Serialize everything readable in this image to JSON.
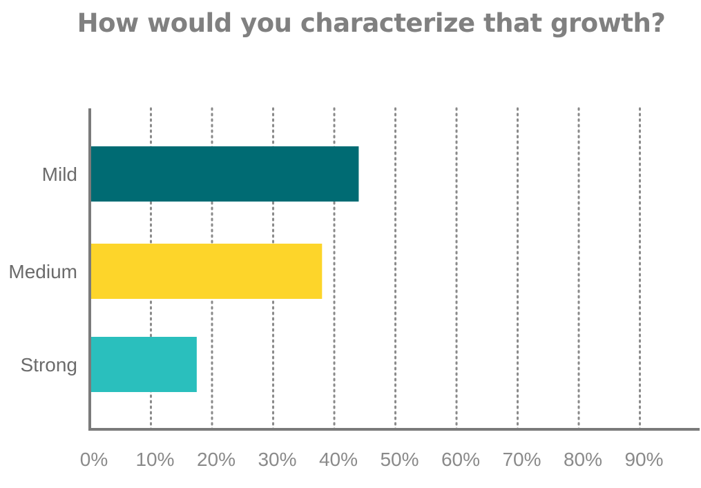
{
  "chart_data": {
    "type": "bar",
    "orientation": "horizontal",
    "title": "How would you characterize that growth?",
    "xlabel": "",
    "ylabel": "",
    "categories": [
      "Mild",
      "Medium",
      "Strong"
    ],
    "values": [
      44,
      38,
      17.5
    ],
    "value_unit": "%",
    "xlim": [
      0,
      100
    ],
    "x_ticks": [
      0,
      10,
      20,
      30,
      40,
      50,
      60,
      70,
      80,
      90
    ],
    "x_tick_labels": [
      "0%",
      "10%",
      "20%",
      "30%",
      "40%",
      "50%",
      "60%",
      "70%",
      "80%",
      "90%"
    ],
    "grid": "vertical dotted",
    "legend": "none",
    "colors": [
      "#006B73",
      "#FDD52A",
      "#2ABFBD"
    ],
    "axis_color": "#7a7a7a",
    "grid_color": "#8a8a8a"
  }
}
